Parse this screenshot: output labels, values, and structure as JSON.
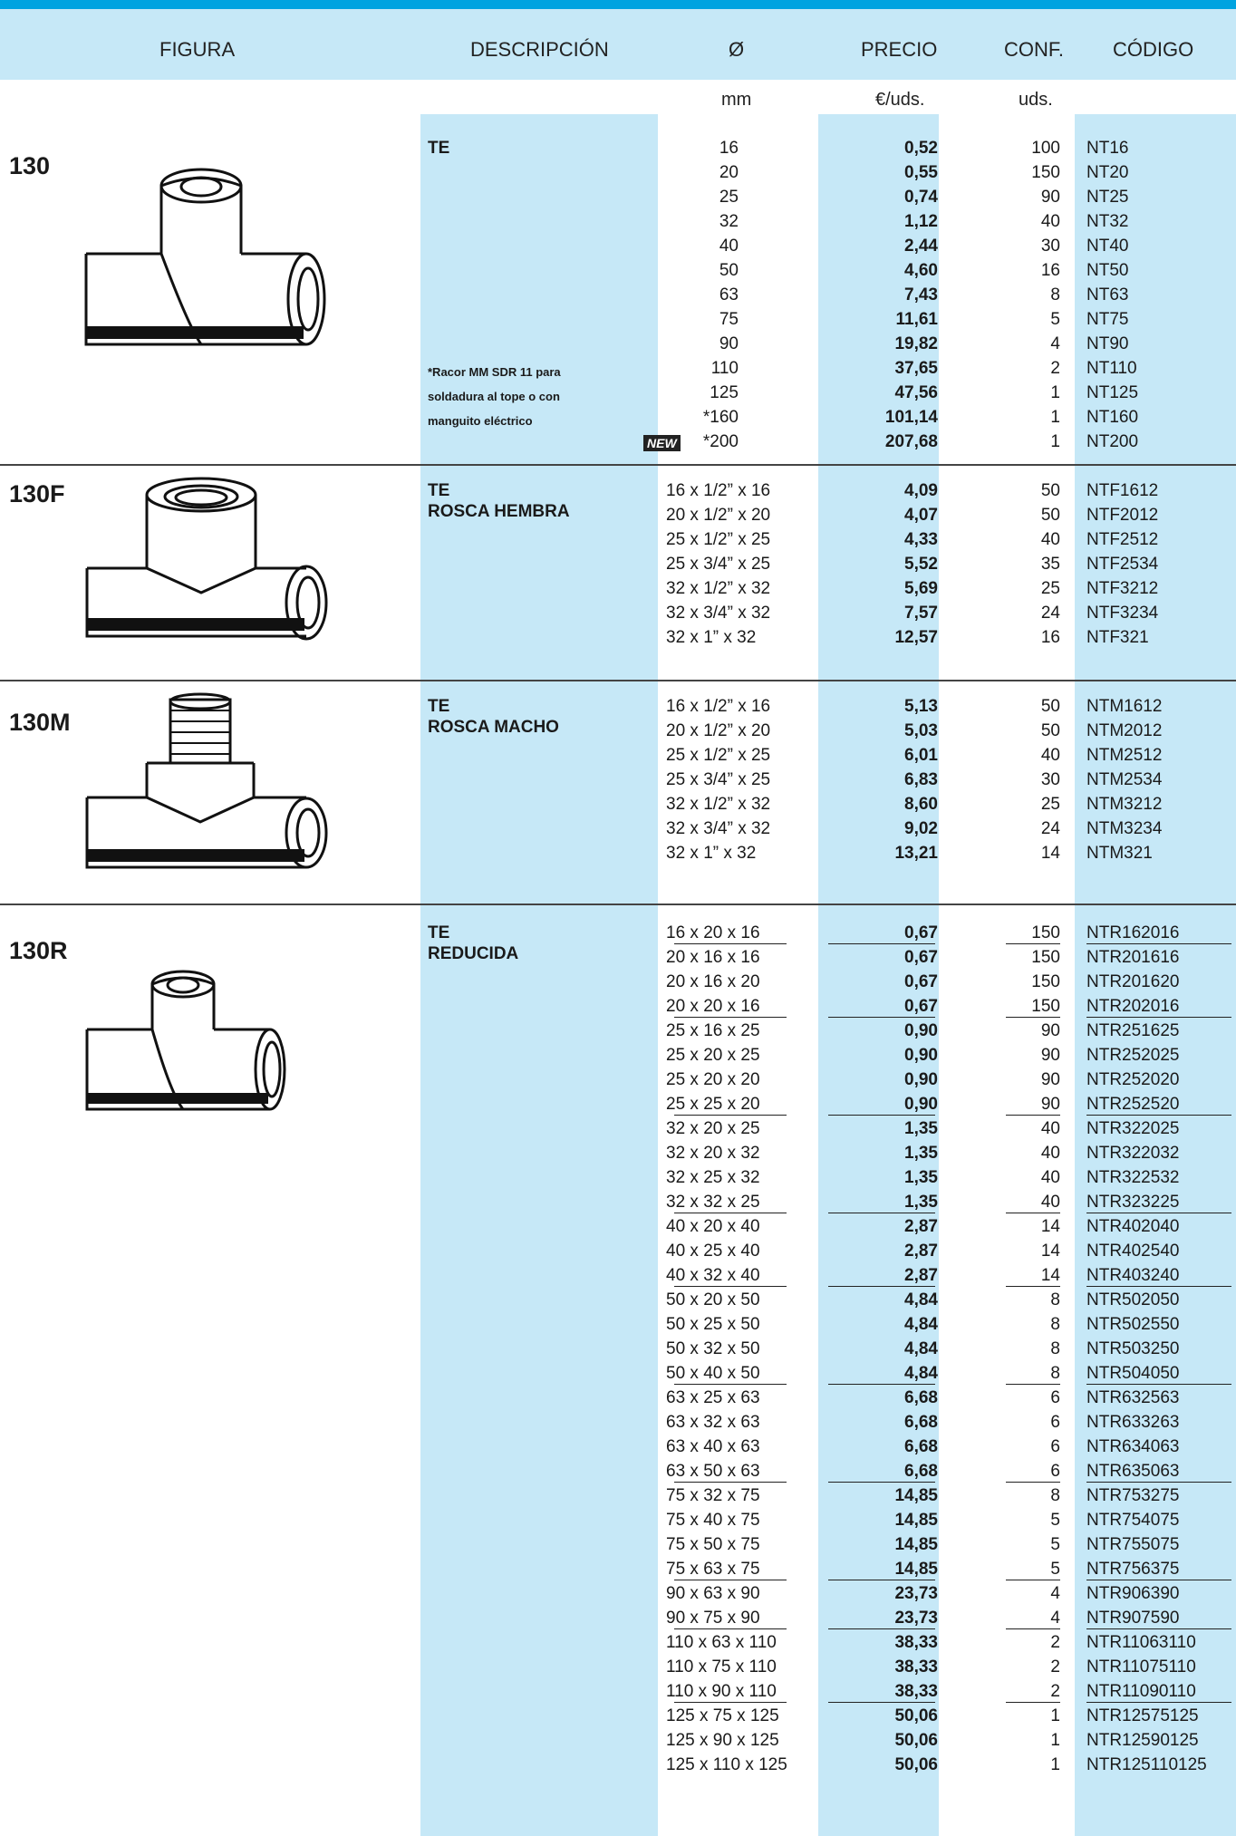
{
  "header": {
    "figura": "FIGURA",
    "descripcion": "DESCRIPCIÓN",
    "diam": "Ø",
    "precio": "PRECIO",
    "conf": "CONF.",
    "codigo": "CÓDIGO"
  },
  "units": {
    "mm": "mm",
    "precio": "€/uds.",
    "conf": "uds."
  },
  "sections": [
    {
      "figure": "130",
      "desc": [
        "TE"
      ],
      "note": [
        "*Racor MM SDR 11 para",
        "soldadura al tope o con",
        "manguito eléctrico"
      ],
      "new_badge": "NEW",
      "rows": [
        [
          "16",
          "0,52",
          "100",
          "NT16"
        ],
        [
          "20",
          "0,55",
          "150",
          "NT20"
        ],
        [
          "25",
          "0,74",
          "90",
          "NT25"
        ],
        [
          "32",
          "1,12",
          "40",
          "NT32"
        ],
        [
          "40",
          "2,44",
          "30",
          "NT40"
        ],
        [
          "50",
          "4,60",
          "16",
          "NT50"
        ],
        [
          "63",
          "7,43",
          "8",
          "NT63"
        ],
        [
          "75",
          "11,61",
          "5",
          "NT75"
        ],
        [
          "90",
          "19,82",
          "4",
          "NT90"
        ],
        [
          "110",
          "37,65",
          "2",
          "NT110"
        ],
        [
          "125",
          "47,56",
          "1",
          "NT125"
        ],
        [
          "*160",
          "101,14",
          "1",
          "NT160"
        ],
        [
          "*200",
          "207,68",
          "1",
          "NT200"
        ]
      ]
    },
    {
      "figure": "130F",
      "desc": [
        "TE",
        "ROSCA HEMBRA"
      ],
      "rows": [
        [
          "16 x 1/2” x 16",
          "4,09",
          "50",
          "NTF1612"
        ],
        [
          "20 x 1/2” x 20",
          "4,07",
          "50",
          "NTF2012"
        ],
        [
          "25 x 1/2” x 25",
          "4,33",
          "40",
          "NTF2512"
        ],
        [
          "25 x 3/4” x 25",
          "5,52",
          "35",
          "NTF2534"
        ],
        [
          "32 x 1/2” x 32",
          "5,69",
          "25",
          "NTF3212"
        ],
        [
          "32 x 3/4” x 32",
          "7,57",
          "24",
          "NTF3234"
        ],
        [
          "32 x 1”    x 32",
          "12,57",
          "16",
          "NTF321"
        ]
      ]
    },
    {
      "figure": "130M",
      "desc": [
        "TE",
        "ROSCA MACHO"
      ],
      "rows": [
        [
          "16 x 1/2” x 16",
          "5,13",
          "50",
          "NTM1612"
        ],
        [
          "20 x 1/2” x 20",
          "5,03",
          "50",
          "NTM2012"
        ],
        [
          "25 x 1/2” x 25",
          "6,01",
          "40",
          "NTM2512"
        ],
        [
          "25 x 3/4” x 25",
          "6,83",
          "30",
          "NTM2534"
        ],
        [
          "32 x 1/2” x 32",
          "8,60",
          "25",
          "NTM3212"
        ],
        [
          "32 x 3/4” x 32",
          "9,02",
          "24",
          "NTM3234"
        ],
        [
          "32 x 1”    x 32",
          "13,21",
          "14",
          "NTM321"
        ]
      ]
    },
    {
      "figure": "130R",
      "desc": [
        "TE",
        "REDUCIDA"
      ],
      "rows": [
        [
          "16 x  20 x 16",
          "0,67",
          "150",
          "NTR162016"
        ],
        [
          "20 x 16 x 16",
          "0,67",
          "150",
          "NTR201616"
        ],
        [
          "20 x 16 x 20",
          "0,67",
          "150",
          "NTR201620"
        ],
        [
          "20 x 20 x 16",
          "0,67",
          "150",
          "NTR202016"
        ],
        [
          "25 x 16 x 25",
          "0,90",
          "90",
          "NTR251625"
        ],
        [
          "25 x 20 x 25",
          "0,90",
          "90",
          "NTR252025"
        ],
        [
          "25 x 20 x 20",
          "0,90",
          "90",
          "NTR252020"
        ],
        [
          "25 x 25 x 20",
          "0,90",
          "90",
          "NTR252520"
        ],
        [
          "32 x 20 x 25",
          "1,35",
          "40",
          "NTR322025"
        ],
        [
          "32 x 20 x 32",
          "1,35",
          "40",
          "NTR322032"
        ],
        [
          "32 x 25 x 32",
          "1,35",
          "40",
          "NTR322532"
        ],
        [
          "32 x 32 x 25",
          "1,35",
          "40",
          "NTR323225"
        ],
        [
          "40 x 20 x 40",
          "2,87",
          "14",
          "NTR402040"
        ],
        [
          "40 x 25 x 40",
          "2,87",
          "14",
          "NTR402540"
        ],
        [
          "40 x 32 x 40",
          "2,87",
          "14",
          "NTR403240"
        ],
        [
          "50 x 20 x 50",
          "4,84",
          "8",
          "NTR502050"
        ],
        [
          "50 x 25 x 50",
          "4,84",
          "8",
          "NTR502550"
        ],
        [
          "50 x 32 x 50",
          "4,84",
          "8",
          "NTR503250"
        ],
        [
          "50 x 40 x 50",
          "4,84",
          "8",
          "NTR504050"
        ],
        [
          "63 x 25 x 63",
          "6,68",
          "6",
          "NTR632563"
        ],
        [
          "63 x 32 x 63",
          "6,68",
          "6",
          "NTR633263"
        ],
        [
          "63 x 40 x 63",
          "6,68",
          "6",
          "NTR634063"
        ],
        [
          "63 x 50 x 63",
          "6,68",
          "6",
          "NTR635063"
        ],
        [
          "75 x 32 x 75",
          "14,85",
          "8",
          "NTR753275"
        ],
        [
          "75 x 40 x 75",
          "14,85",
          "5",
          "NTR754075"
        ],
        [
          "75 x 50 x 75",
          "14,85",
          "5",
          "NTR755075"
        ],
        [
          "75 x 63 x 75",
          "14,85",
          "5",
          "NTR756375"
        ],
        [
          "90 x 63 x 90",
          "23,73",
          "4",
          "NTR906390"
        ],
        [
          "90 x 75 x 90",
          "23,73",
          "4",
          "NTR907590"
        ],
        [
          "110 x 63 x 110",
          "38,33",
          "2",
          "NTR11063110"
        ],
        [
          "110 x 75 x 110",
          "38,33",
          "2",
          "NTR11075110"
        ],
        [
          "110 x 90 x 110",
          "38,33",
          "2",
          "NTR11090110"
        ],
        [
          "125 x 75 x 125",
          "50,06",
          "1",
          "NTR12575125"
        ],
        [
          "125 x 90 x 125",
          "50,06",
          "1",
          "NTR12590125"
        ],
        [
          "125 x 110 x 125",
          "50,06",
          "1",
          "NTR125110125"
        ]
      ]
    }
  ],
  "colors": {
    "accent_bar": "#00a3e0",
    "column_bg": "#c6e8f7"
  }
}
